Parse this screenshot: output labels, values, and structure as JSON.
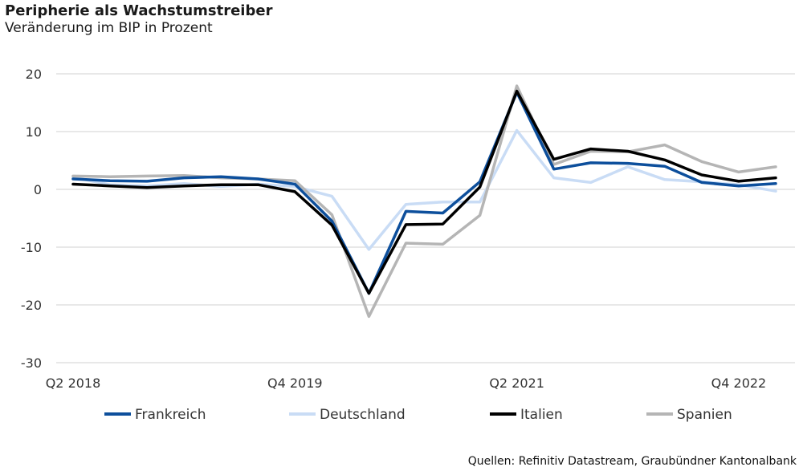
{
  "header": {
    "title": "Peripherie als Wachstumstreiber",
    "subtitle": "Veränderung im BIP in Prozent"
  },
  "source": "Quellen: Refinitiv Datastream, Graubündner Kantonalbank",
  "chart_data": {
    "type": "line",
    "x": [
      "Q2 2018",
      "Q3 2018",
      "Q4 2018",
      "Q1 2019",
      "Q2 2019",
      "Q3 2019",
      "Q4 2019",
      "Q1 2020",
      "Q2 2020",
      "Q3 2020",
      "Q4 2020",
      "Q1 2021",
      "Q2 2021",
      "Q3 2021",
      "Q4 2021",
      "Q1 2022",
      "Q2 2022",
      "Q3 2022",
      "Q4 2022",
      "Q1 2023"
    ],
    "x_tick_labels": [
      "Q2 2018",
      "Q4 2019",
      "Q2 2021",
      "Q4 2022"
    ],
    "x_tick_indices": [
      0,
      6,
      12,
      18
    ],
    "ylim": [
      -30,
      20
    ],
    "yticks": [
      20,
      10,
      0,
      -10,
      -20,
      -30
    ],
    "grid": true,
    "legend_position": "bottom",
    "series": [
      {
        "name": "Frankreich",
        "color": "#0d4f9c",
        "values": [
          1.8,
          1.5,
          1.4,
          2.0,
          2.2,
          1.8,
          0.9,
          -5.5,
          -18.0,
          -3.8,
          -4.1,
          1.3,
          16.8,
          3.5,
          4.6,
          4.5,
          4.0,
          1.2,
          0.6,
          1.0
        ]
      },
      {
        "name": "Deutschland",
        "color": "#c9dcf5",
        "values": [
          2.1,
          0.8,
          0.6,
          1.0,
          0.5,
          0.9,
          0.5,
          -1.2,
          -10.4,
          -2.6,
          -2.2,
          -2.2,
          10.2,
          2.0,
          1.2,
          3.9,
          1.7,
          1.3,
          0.8,
          -0.3
        ]
      },
      {
        "name": "Italien",
        "color": "#000000",
        "values": [
          0.9,
          0.6,
          0.3,
          0.6,
          0.8,
          0.8,
          -0.4,
          -6.2,
          -18.0,
          -6.1,
          -6.0,
          0.4,
          17.0,
          5.2,
          7.0,
          6.6,
          5.1,
          2.5,
          1.4,
          2.0
        ]
      },
      {
        "name": "Spanien",
        "color": "#b5b5b5",
        "values": [
          2.3,
          2.2,
          2.3,
          2.4,
          2.0,
          1.8,
          1.5,
          -4.4,
          -22.0,
          -9.3,
          -9.5,
          -4.5,
          17.9,
          4.3,
          6.6,
          6.5,
          7.7,
          4.8,
          3.0,
          3.9
        ]
      }
    ]
  }
}
